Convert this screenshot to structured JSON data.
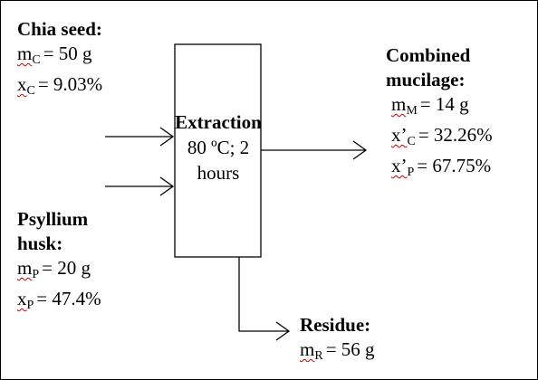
{
  "inputs": [
    {
      "title": "Chia seed:",
      "lines": [
        {
          "symbol": "m",
          "sub": "C",
          "rest": "= 50 g"
        },
        {
          "symbol": "x",
          "sub": "C",
          "rest": "= 9.03%"
        }
      ]
    },
    {
      "title": "Psyllium husk:",
      "lines": [
        {
          "symbol": "m",
          "sub": "P",
          "rest": "= 20 g"
        },
        {
          "symbol": "x",
          "sub": "P",
          "rest": "= 47.4%"
        }
      ]
    }
  ],
  "process": {
    "title": "Extraction",
    "detail": "80 ºC; 2 hours"
  },
  "outputs": [
    {
      "title": "Combined mucilage:",
      "lines": [
        {
          "symbol": "m",
          "sub": "M",
          "rest": "= 14 g"
        },
        {
          "symbol": "x’",
          "sub": "C",
          "rest": "= 32.26%"
        },
        {
          "symbol": "x’",
          "sub": "P",
          "rest": "= 67.75%"
        }
      ]
    },
    {
      "title": "Residue:",
      "lines": [
        {
          "symbol": "m",
          "sub": "R",
          "rest": "= 56 g"
        }
      ]
    }
  ]
}
